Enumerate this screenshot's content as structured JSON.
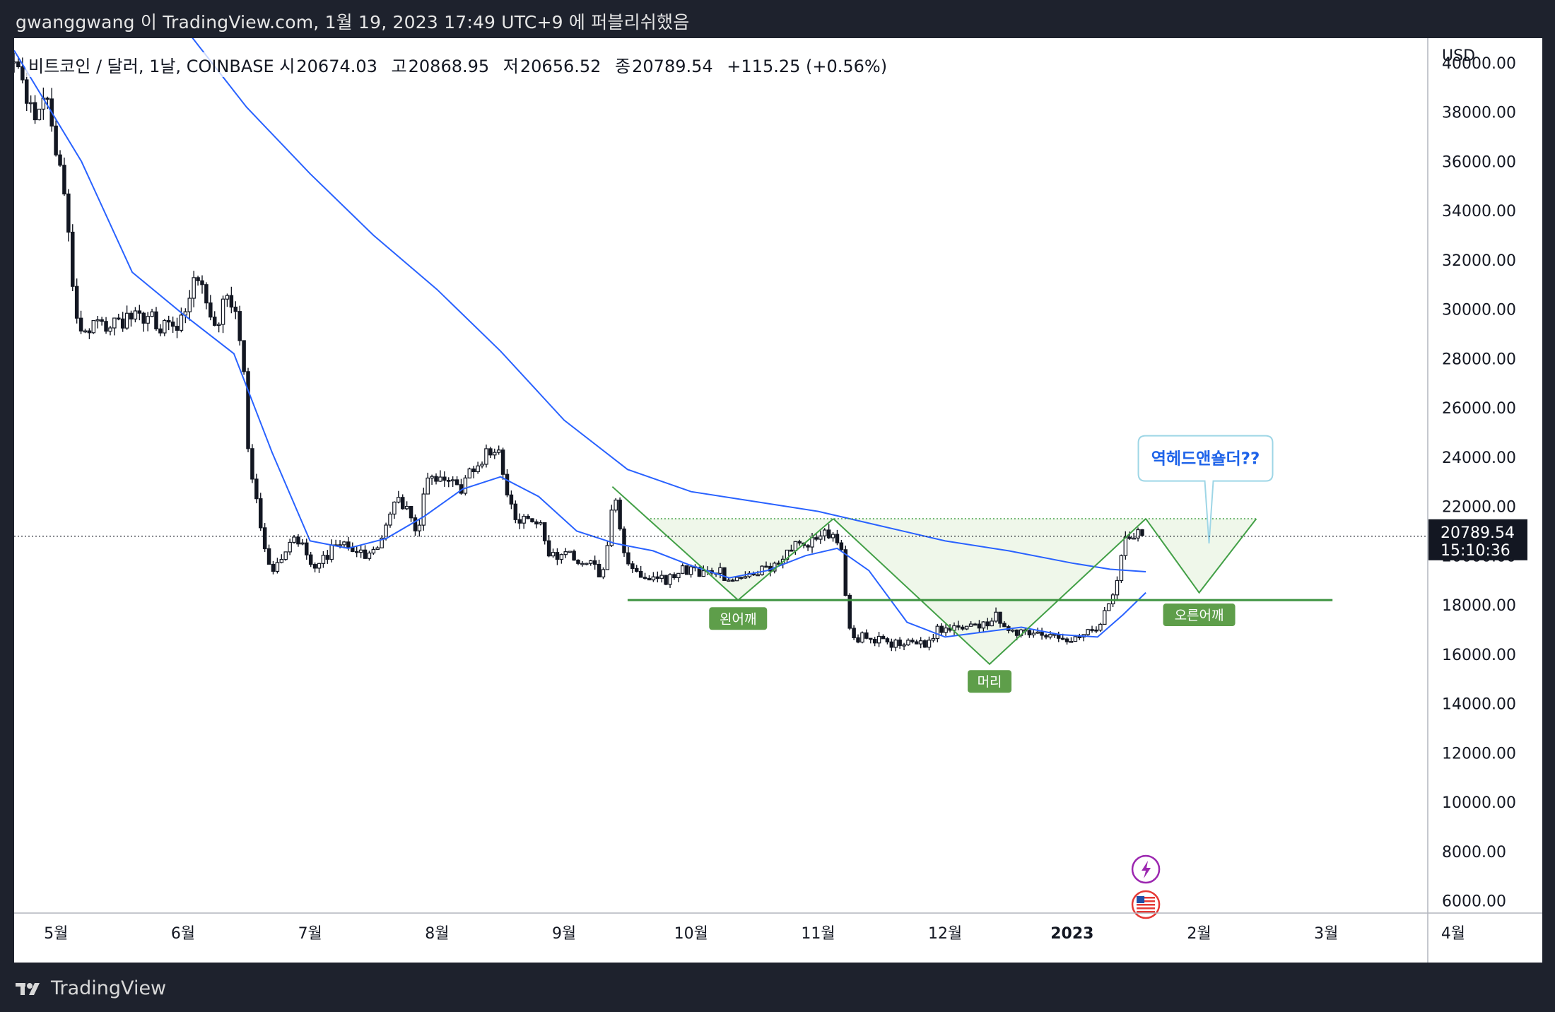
{
  "header": {
    "published_by": "gwanggwang 이 TradingView.com, 1월 19, 2023 17:49 UTC+9 에 퍼블리쉬했음"
  },
  "legend": {
    "symbol": "비트코인 / 달러, 1날, COINBASE",
    "open_label": "시",
    "open": "20674.03",
    "high_label": "고",
    "high": "20868.95",
    "low_label": "저",
    "low": "20656.52",
    "close_label": "종",
    "close": "20789.54",
    "change": "+115.25 (+0.56%)"
  },
  "price_axis": {
    "currency": "USD",
    "current_price": "20789.54",
    "countdown": "15:10:36"
  },
  "footer": {
    "brand": "TradingView"
  },
  "colors": {
    "background": "#1e222d",
    "chart_bg": "#ffffff",
    "candle": "#131722",
    "ma": "#2962ff",
    "pattern": "#43a047",
    "pattern_fill": "#e8f3e1",
    "label_bg": "#5e9e4a",
    "callout_border": "#9ed6e6",
    "callout_text": "#1e63e9"
  },
  "icons": [
    "lightning-event-icon",
    "us-flag-event-icon"
  ],
  "chart_data": {
    "type": "candlestick",
    "title": "비트코인 / 달러, 1날, COINBASE",
    "x_unit": "month",
    "x_domain": [
      4.67,
      15.8
    ],
    "ylim": [
      5500,
      41000
    ],
    "y_ticks": [
      6000,
      8000,
      10000,
      12000,
      14000,
      16000,
      18000,
      20000,
      22000,
      24000,
      26000,
      28000,
      30000,
      32000,
      34000,
      36000,
      38000,
      40000
    ],
    "y_tick_labels": [
      "6000.00",
      "8000.00",
      "10000.00",
      "12000.00",
      "14000.00",
      "16000.00",
      "18000.00",
      "20000.00",
      "22000.00",
      "24000.00",
      "26000.00",
      "28000.00",
      "30000.00",
      "32000.00",
      "34000.00",
      "36000.00",
      "38000.00",
      "40000.00"
    ],
    "x_ticks": [
      5,
      6,
      7,
      8,
      9,
      10,
      11,
      12,
      13,
      14,
      15,
      16
    ],
    "x_tick_labels": [
      "5월",
      "6월",
      "7월",
      "8월",
      "9월",
      "10월",
      "11월",
      "12월",
      "2023",
      "2월",
      "3월",
      "4월"
    ],
    "price_anchors": [
      [
        4.67,
        40000
      ],
      [
        4.77,
        38500
      ],
      [
        4.85,
        37800
      ],
      [
        4.93,
        38800
      ],
      [
        5.0,
        36500
      ],
      [
        5.08,
        34500
      ],
      [
        5.15,
        30000
      ],
      [
        5.2,
        29200
      ],
      [
        5.35,
        29500
      ],
      [
        5.5,
        29400
      ],
      [
        5.6,
        29600
      ],
      [
        5.72,
        29800
      ],
      [
        5.82,
        29400
      ],
      [
        5.95,
        29500
      ],
      [
        6.05,
        30500
      ],
      [
        6.1,
        31800
      ],
      [
        6.18,
        30100
      ],
      [
        6.28,
        29500
      ],
      [
        6.35,
        30600
      ],
      [
        6.42,
        29500
      ],
      [
        6.47,
        28000
      ],
      [
        6.52,
        24000
      ],
      [
        6.58,
        22000
      ],
      [
        6.63,
        20500
      ],
      [
        6.7,
        19500
      ],
      [
        6.78,
        20000
      ],
      [
        6.88,
        20800
      ],
      [
        6.98,
        20000
      ],
      [
        7.05,
        19500
      ],
      [
        7.15,
        20200
      ],
      [
        7.25,
        20500
      ],
      [
        7.35,
        20200
      ],
      [
        7.45,
        20100
      ],
      [
        7.55,
        20500
      ],
      [
        7.62,
        21500
      ],
      [
        7.68,
        22500
      ],
      [
        7.75,
        22000
      ],
      [
        7.85,
        21000
      ],
      [
        7.92,
        23000
      ],
      [
        8.0,
        23200
      ],
      [
        8.1,
        23000
      ],
      [
        8.2,
        22800
      ],
      [
        8.3,
        23600
      ],
      [
        8.38,
        24100
      ],
      [
        8.45,
        24300
      ],
      [
        8.5,
        24000
      ],
      [
        8.6,
        21500
      ],
      [
        8.7,
        21400
      ],
      [
        8.8,
        21500
      ],
      [
        8.88,
        20100
      ],
      [
        8.98,
        19900
      ],
      [
        9.05,
        20000
      ],
      [
        9.13,
        19500
      ],
      [
        9.2,
        19700
      ],
      [
        9.3,
        19200
      ],
      [
        9.38,
        21800
      ],
      [
        9.42,
        22200
      ],
      [
        9.45,
        20200
      ],
      [
        9.55,
        19600
      ],
      [
        9.63,
        19200
      ],
      [
        9.72,
        19000
      ],
      [
        9.82,
        19100
      ],
      [
        9.92,
        19500
      ],
      [
        10.0,
        19400
      ],
      [
        10.1,
        19300
      ],
      [
        10.18,
        19600
      ],
      [
        10.25,
        19200
      ],
      [
        10.32,
        19100
      ],
      [
        10.4,
        19000
      ],
      [
        10.5,
        19300
      ],
      [
        10.6,
        19500
      ],
      [
        10.7,
        19800
      ],
      [
        10.8,
        20500
      ],
      [
        10.9,
        20600
      ],
      [
        11.0,
        20500
      ],
      [
        11.07,
        20900
      ],
      [
        11.12,
        21000
      ],
      [
        11.18,
        20300
      ],
      [
        11.22,
        18000
      ],
      [
        11.27,
        16500
      ],
      [
        11.35,
        16800
      ],
      [
        11.45,
        16600
      ],
      [
        11.55,
        16500
      ],
      [
        11.65,
        16300
      ],
      [
        11.75,
        16500
      ],
      [
        11.85,
        16400
      ],
      [
        11.95,
        17000
      ],
      [
        12.05,
        17100
      ],
      [
        12.15,
        17000
      ],
      [
        12.25,
        17100
      ],
      [
        12.35,
        17300
      ],
      [
        12.4,
        17800
      ],
      [
        12.45,
        17200
      ],
      [
        12.5,
        16900
      ],
      [
        12.6,
        16800
      ],
      [
        12.7,
        16900
      ],
      [
        12.8,
        16800
      ],
      [
        12.9,
        16600
      ],
      [
        13.0,
        16550
      ],
      [
        13.08,
        16650
      ],
      [
        13.15,
        16900
      ],
      [
        13.22,
        17200
      ],
      [
        13.28,
        17900
      ],
      [
        13.35,
        18800
      ],
      [
        13.38,
        19700
      ],
      [
        13.42,
        20800
      ],
      [
        13.5,
        21000
      ],
      [
        13.56,
        20790
      ]
    ],
    "series": [
      {
        "name": "",
        "x": [
          4.67,
          5.2,
          5.6,
          6.0,
          6.4,
          6.7,
          7.0,
          7.3,
          7.6,
          7.9,
          8.2,
          8.5,
          8.8,
          9.1,
          9.4,
          9.7,
          10.0,
          10.3,
          10.6,
          10.9,
          11.15,
          11.4,
          11.7,
          12.0,
          12.3,
          12.6,
          12.9,
          13.2,
          13.4,
          13.58
        ],
        "values": [
          40500,
          36000,
          31500,
          29800,
          28200,
          24200,
          20600,
          20300,
          20700,
          21600,
          22700,
          23200,
          22400,
          21000,
          20500,
          20200,
          19600,
          19100,
          19400,
          20000,
          20300,
          19400,
          17300,
          16700,
          16900,
          17100,
          16800,
          16700,
          17600,
          18500
        ]
      },
      {
        "name": "",
        "x": [
          6.0,
          6.5,
          7.0,
          7.5,
          8.0,
          8.5,
          9.0,
          9.5,
          10.0,
          10.5,
          11.0,
          11.5,
          12.0,
          12.5,
          13.0,
          13.3,
          13.58
        ],
        "values": [
          41500,
          38200,
          35500,
          33000,
          30800,
          28300,
          25500,
          23500,
          22600,
          22200,
          21800,
          21200,
          20600,
          20200,
          19700,
          19450,
          19350
        ]
      }
    ],
    "annotations": {
      "neckline": 18200,
      "resistance": 21500,
      "left_shoulder_label": "왼어깨",
      "head_label": "머리",
      "right_shoulder_label": "오른어깨",
      "callout_text": "역헤드앤숄더??",
      "left_shoulder_points": [
        [
          9.38,
          22800
        ],
        [
          10.37,
          18200
        ],
        [
          11.12,
          21500
        ]
      ],
      "head_points": [
        [
          11.12,
          21500
        ],
        [
          12.35,
          15600
        ],
        [
          13.58,
          21500
        ]
      ],
      "right_shoulder_points": [
        [
          13.58,
          21500
        ],
        [
          14.0,
          18500
        ],
        [
          14.45,
          21500
        ]
      ],
      "left_shoulder_label_at": [
        10.37,
        17450
      ],
      "head_label_at": [
        12.35,
        14900
      ],
      "right_shoulder_label_at": [
        14.0,
        17600
      ],
      "callout_at": [
        14.05,
        23950
      ],
      "neckline_range": [
        9.5,
        15.05
      ],
      "resistance_range": [
        9.65,
        14.45
      ]
    }
  }
}
